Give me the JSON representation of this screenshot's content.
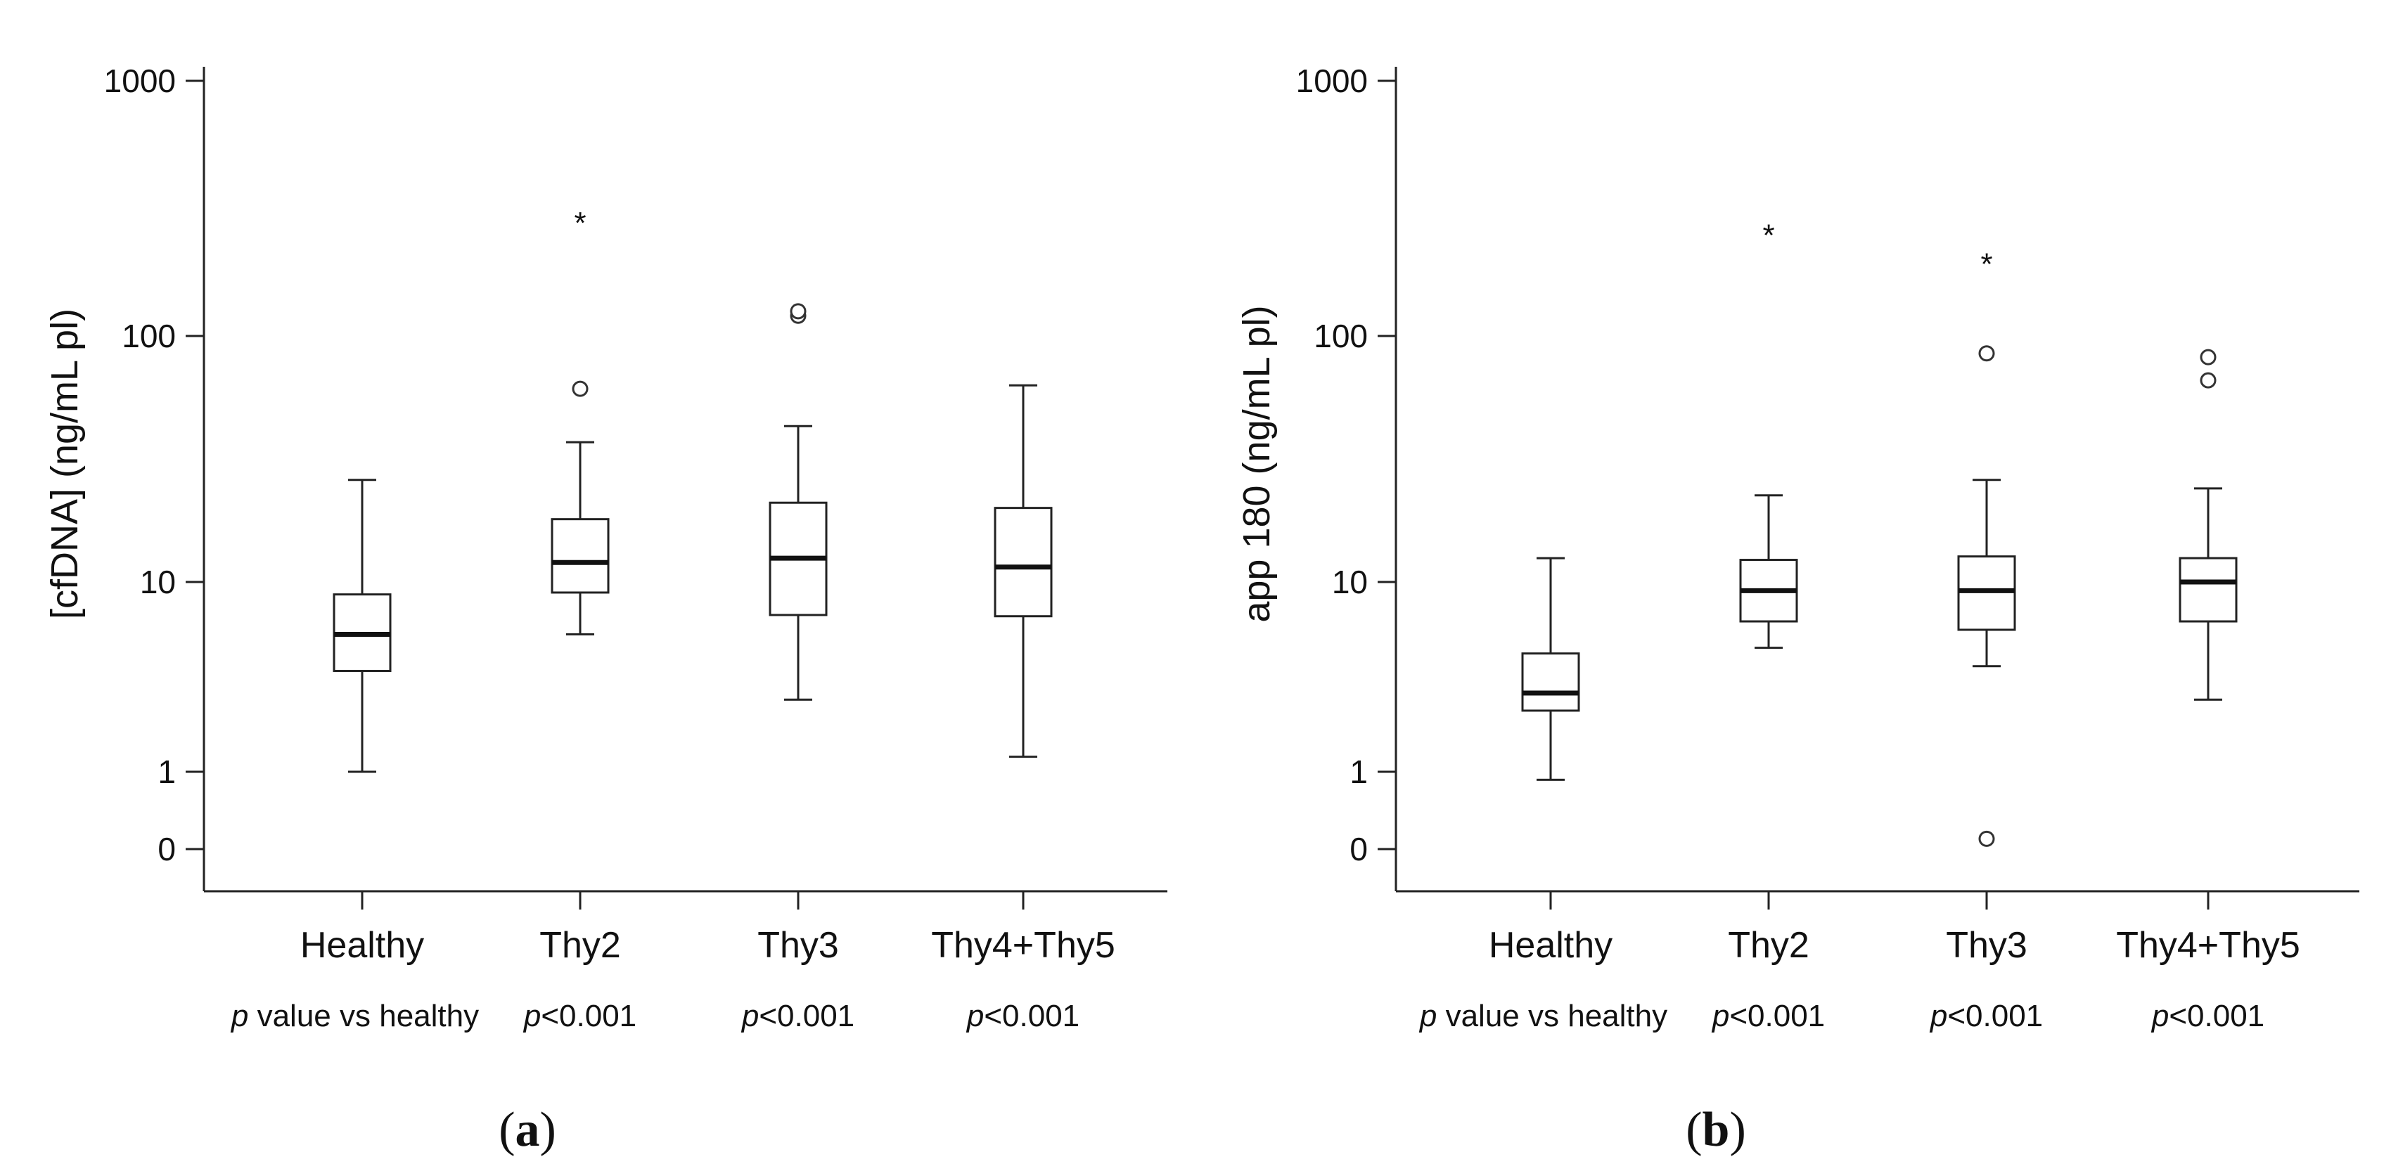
{
  "chart_data": [
    {
      "type": "box",
      "panel_label": "a",
      "ylabel": "[cfDNA] (ng/mL pl)",
      "yscale": "log",
      "yticks": [
        {
          "value": 0,
          "label": "0"
        },
        {
          "value": 1,
          "label": "1"
        },
        {
          "value": 10,
          "label": "10"
        },
        {
          "value": 100,
          "label": "100"
        },
        {
          "value": 1000,
          "label": "1000"
        }
      ],
      "categories": [
        "Healthy",
        "Thy2",
        "Thy3",
        "Thy4+Thy5"
      ],
      "pvalue_header": "value vs healthy",
      "pvalue_symbol": "p",
      "pvalues": [
        "<0.001",
        "<0.001",
        "<0.001"
      ],
      "boxes": [
        {
          "name": "Healthy",
          "whisker_low": 1,
          "q1": 3.4,
          "median": 5.3,
          "q3": 8.6,
          "whisker_high": 26,
          "outliers": [],
          "extremes": []
        },
        {
          "name": "Thy2",
          "whisker_low": 5.3,
          "q1": 8.8,
          "median": 12,
          "q3": 18,
          "whisker_high": 37,
          "outliers": [
            61
          ],
          "extremes": [
            290
          ]
        },
        {
          "name": "Thy3",
          "whisker_low": 2.4,
          "q1": 6.7,
          "median": 12.5,
          "q3": 21,
          "whisker_high": 43,
          "outliers": [
            120,
            125
          ],
          "extremes": []
        },
        {
          "name": "Thy4+Thy5",
          "whisker_low": 1.2,
          "q1": 6.6,
          "median": 11.5,
          "q3": 20,
          "whisker_high": 63,
          "outliers": [],
          "extremes": []
        }
      ]
    },
    {
      "type": "box",
      "panel_label": "b",
      "ylabel": "app 180 (ng/mL pl)",
      "yscale": "log",
      "yticks": [
        {
          "value": 0,
          "label": "0"
        },
        {
          "value": 1,
          "label": "1"
        },
        {
          "value": 10,
          "label": "10"
        },
        {
          "value": 100,
          "label": "100"
        },
        {
          "value": 1000,
          "label": "1000"
        }
      ],
      "categories": [
        "Healthy",
        "Thy2",
        "Thy3",
        "Thy4+Thy5"
      ],
      "pvalue_header": "value vs healthy",
      "pvalue_symbol": "p",
      "pvalues": [
        "<0.001",
        "<0.001",
        "<0.001"
      ],
      "boxes": [
        {
          "name": "Healthy",
          "whisker_low": 0.7,
          "q1": 2.1,
          "median": 2.6,
          "q3": 4.2,
          "whisker_high": 12.5,
          "outliers": [],
          "extremes": []
        },
        {
          "name": "Thy2",
          "whisker_low": 4.5,
          "q1": 6.2,
          "median": 9,
          "q3": 12.3,
          "whisker_high": 22.5,
          "outliers": [],
          "extremes": [
            260
          ]
        },
        {
          "name": "Thy3",
          "whisker_low": 3.6,
          "q1": 5.6,
          "median": 9,
          "q3": 12.7,
          "whisker_high": 26,
          "outliers": [
            85,
            0.05
          ],
          "extremes": [
            200
          ]
        },
        {
          "name": "Thy4+Thy5",
          "whisker_low": 2.4,
          "q1": 6.2,
          "median": 10,
          "q3": 12.5,
          "whisker_high": 24,
          "outliers": [
            82,
            66
          ],
          "extremes": []
        }
      ]
    }
  ]
}
